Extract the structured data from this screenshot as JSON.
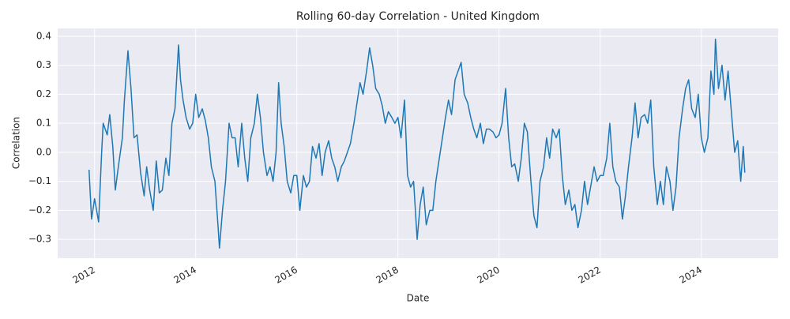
{
  "chart_data": {
    "type": "line",
    "title": "Rolling 60-day Correlation - United Kingdom",
    "xlabel": "Date",
    "ylabel": "Correlation",
    "color": "#1f77b4",
    "grid": true,
    "xlim": [
      2011.27,
      2025.52
    ],
    "xticks": [
      2012,
      2014,
      2016,
      2018,
      2020,
      2022,
      2024
    ],
    "ylim": [
      -0.365,
      0.427
    ],
    "yticks": [
      {
        "value": -0.3,
        "label": "−0.3"
      },
      {
        "value": -0.2,
        "label": "−0.2"
      },
      {
        "value": -0.1,
        "label": "−0.1"
      },
      {
        "value": 0,
        "label": "0.0"
      },
      0.1,
      0.2,
      0.3,
      0.4
    ],
    "x": [
      2011.89,
      2011.94,
      2012.0,
      2012.08,
      2012.14,
      2012.17,
      2012.25,
      2012.3,
      2012.36,
      2012.41,
      2012.47,
      2012.55,
      2012.59,
      2012.66,
      2012.72,
      2012.78,
      2012.84,
      2012.91,
      2012.98,
      2013.03,
      2013.09,
      2013.16,
      2013.22,
      2013.28,
      2013.34,
      2013.41,
      2013.47,
      2013.53,
      2013.59,
      2013.66,
      2013.7,
      2013.75,
      2013.81,
      2013.88,
      2013.94,
      2014.0,
      2014.06,
      2014.13,
      2014.19,
      2014.25,
      2014.31,
      2014.38,
      2014.44,
      2014.47,
      2014.53,
      2014.59,
      2014.66,
      2014.72,
      2014.78,
      2014.84,
      2014.91,
      2014.97,
      2015.03,
      2015.09,
      2015.16,
      2015.22,
      2015.28,
      2015.34,
      2015.41,
      2015.47,
      2015.53,
      2015.59,
      2015.64,
      2015.69,
      2015.75,
      2015.81,
      2015.88,
      2015.94,
      2016.0,
      2016.06,
      2016.13,
      2016.19,
      2016.25,
      2016.31,
      2016.38,
      2016.44,
      2016.5,
      2016.56,
      2016.63,
      2016.69,
      2016.75,
      2016.81,
      2016.88,
      2016.94,
      2017.0,
      2017.06,
      2017.13,
      2017.19,
      2017.25,
      2017.31,
      2017.38,
      2017.44,
      2017.5,
      2017.56,
      2017.63,
      2017.69,
      2017.75,
      2017.81,
      2017.88,
      2017.94,
      2018.0,
      2018.06,
      2018.13,
      2018.19,
      2018.25,
      2018.31,
      2018.38,
      2018.44,
      2018.5,
      2018.56,
      2018.63,
      2018.69,
      2018.75,
      2018.81,
      2018.88,
      2018.94,
      2019.0,
      2019.06,
      2019.13,
      2019.19,
      2019.25,
      2019.31,
      2019.38,
      2019.44,
      2019.5,
      2019.56,
      2019.63,
      2019.69,
      2019.75,
      2019.81,
      2019.88,
      2019.94,
      2020.0,
      2020.06,
      2020.13,
      2020.19,
      2020.25,
      2020.31,
      2020.38,
      2020.44,
      2020.5,
      2020.56,
      2020.63,
      2020.69,
      2020.75,
      2020.81,
      2020.88,
      2020.94,
      2021.0,
      2021.06,
      2021.13,
      2021.19,
      2021.25,
      2021.31,
      2021.38,
      2021.44,
      2021.5,
      2021.56,
      2021.63,
      2021.69,
      2021.75,
      2021.81,
      2021.88,
      2021.94,
      2022.0,
      2022.06,
      2022.13,
      2022.19,
      2022.25,
      2022.31,
      2022.38,
      2022.44,
      2022.5,
      2022.56,
      2022.63,
      2022.69,
      2022.75,
      2022.81,
      2022.88,
      2022.94,
      2023.0,
      2023.06,
      2023.13,
      2023.19,
      2023.25,
      2023.31,
      2023.38,
      2023.44,
      2023.5,
      2023.56,
      2023.63,
      2023.69,
      2023.75,
      2023.81,
      2023.88,
      2023.94,
      2024.0,
      2024.06,
      2024.13,
      2024.19,
      2024.25,
      2024.28,
      2024.34,
      2024.41,
      2024.47,
      2024.53,
      2024.59,
      2024.66,
      2024.72,
      2024.78,
      2024.83,
      2024.86
    ],
    "values": [
      -0.06,
      -0.23,
      -0.16,
      -0.24,
      0.0,
      0.1,
      0.06,
      0.13,
      0.02,
      -0.13,
      -0.05,
      0.05,
      0.18,
      0.35,
      0.22,
      0.05,
      0.06,
      -0.07,
      -0.15,
      -0.05,
      -0.13,
      -0.2,
      -0.03,
      -0.14,
      -0.13,
      -0.02,
      -0.08,
      0.1,
      0.15,
      0.37,
      0.25,
      0.18,
      0.12,
      0.08,
      0.1,
      0.2,
      0.12,
      0.15,
      0.11,
      0.05,
      -0.05,
      -0.1,
      -0.25,
      -0.33,
      -0.2,
      -0.1,
      0.1,
      0.05,
      0.05,
      -0.05,
      0.1,
      -0.02,
      -0.1,
      0.05,
      0.1,
      0.2,
      0.12,
      0.0,
      -0.08,
      -0.05,
      -0.1,
      0.0,
      0.24,
      0.1,
      0.02,
      -0.1,
      -0.14,
      -0.08,
      -0.08,
      -0.2,
      -0.08,
      -0.12,
      -0.1,
      0.02,
      -0.02,
      0.03,
      -0.08,
      0.0,
      0.04,
      -0.02,
      -0.05,
      -0.1,
      -0.05,
      -0.03,
      0.0,
      0.03,
      0.1,
      0.17,
      0.24,
      0.2,
      0.28,
      0.36,
      0.3,
      0.22,
      0.2,
      0.16,
      0.1,
      0.14,
      0.12,
      0.1,
      0.12,
      0.05,
      0.18,
      -0.08,
      -0.12,
      -0.1,
      -0.3,
      -0.18,
      -0.12,
      -0.25,
      -0.2,
      -0.2,
      -0.1,
      -0.03,
      0.05,
      0.12,
      0.18,
      0.13,
      0.25,
      0.28,
      0.31,
      0.2,
      0.17,
      0.12,
      0.08,
      0.05,
      0.1,
      0.03,
      0.08,
      0.08,
      0.07,
      0.05,
      0.06,
      0.1,
      0.22,
      0.05,
      -0.05,
      -0.04,
      -0.1,
      -0.02,
      0.1,
      0.07,
      -0.1,
      -0.22,
      -0.26,
      -0.1,
      -0.05,
      0.05,
      -0.02,
      0.08,
      0.05,
      0.08,
      -0.08,
      -0.18,
      -0.13,
      -0.2,
      -0.18,
      -0.26,
      -0.2,
      -0.1,
      -0.18,
      -0.12,
      -0.05,
      -0.1,
      -0.08,
      -0.08,
      -0.02,
      0.1,
      -0.05,
      -0.1,
      -0.12,
      -0.23,
      -0.15,
      -0.05,
      0.05,
      0.17,
      0.05,
      0.12,
      0.13,
      0.1,
      0.18,
      -0.05,
      -0.18,
      -0.1,
      -0.18,
      -0.05,
      -0.1,
      -0.2,
      -0.12,
      0.05,
      0.15,
      0.22,
      0.25,
      0.15,
      0.12,
      0.2,
      0.05,
      0.0,
      0.05,
      0.28,
      0.2,
      0.39,
      0.22,
      0.3,
      0.18,
      0.28,
      0.15,
      0.0,
      0.04,
      -0.1,
      0.02,
      -0.07
    ]
  }
}
